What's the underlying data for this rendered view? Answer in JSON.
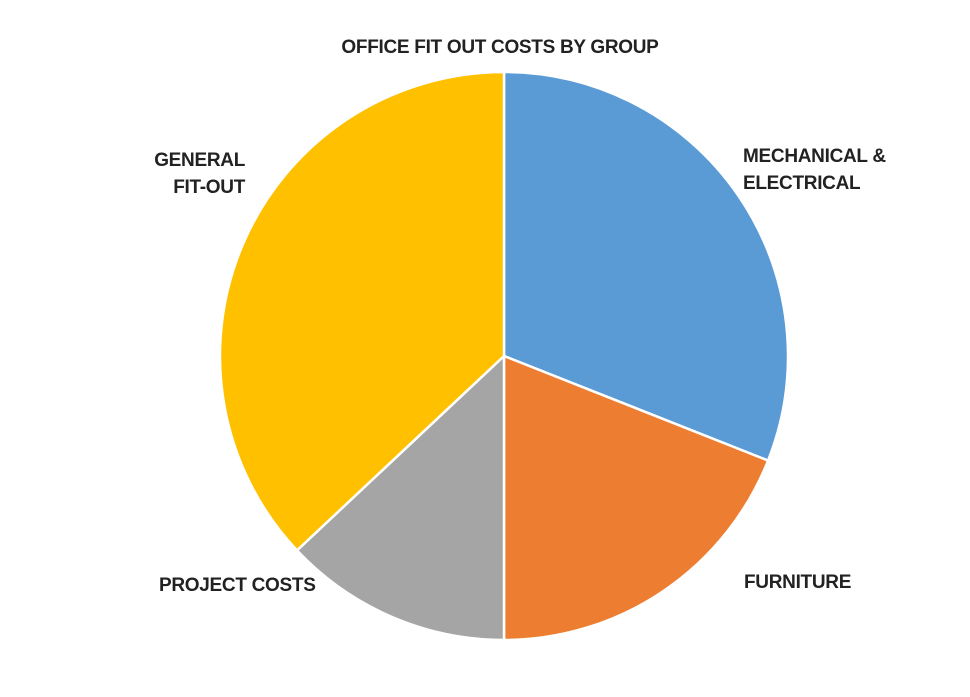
{
  "chart_data": {
    "type": "pie",
    "title": "OFFICE FIT OUT COSTS BY GROUP",
    "categories": [
      "MECHANICAL & ELECTRICAL",
      "FURNITURE",
      "PROJECT COSTS",
      "GENERAL FIT-OUT"
    ],
    "values": [
      31,
      19,
      13,
      37
    ],
    "colors": [
      "#5b9bd5",
      "#ed7d31",
      "#a5a5a5",
      "#ffc000"
    ]
  }
}
